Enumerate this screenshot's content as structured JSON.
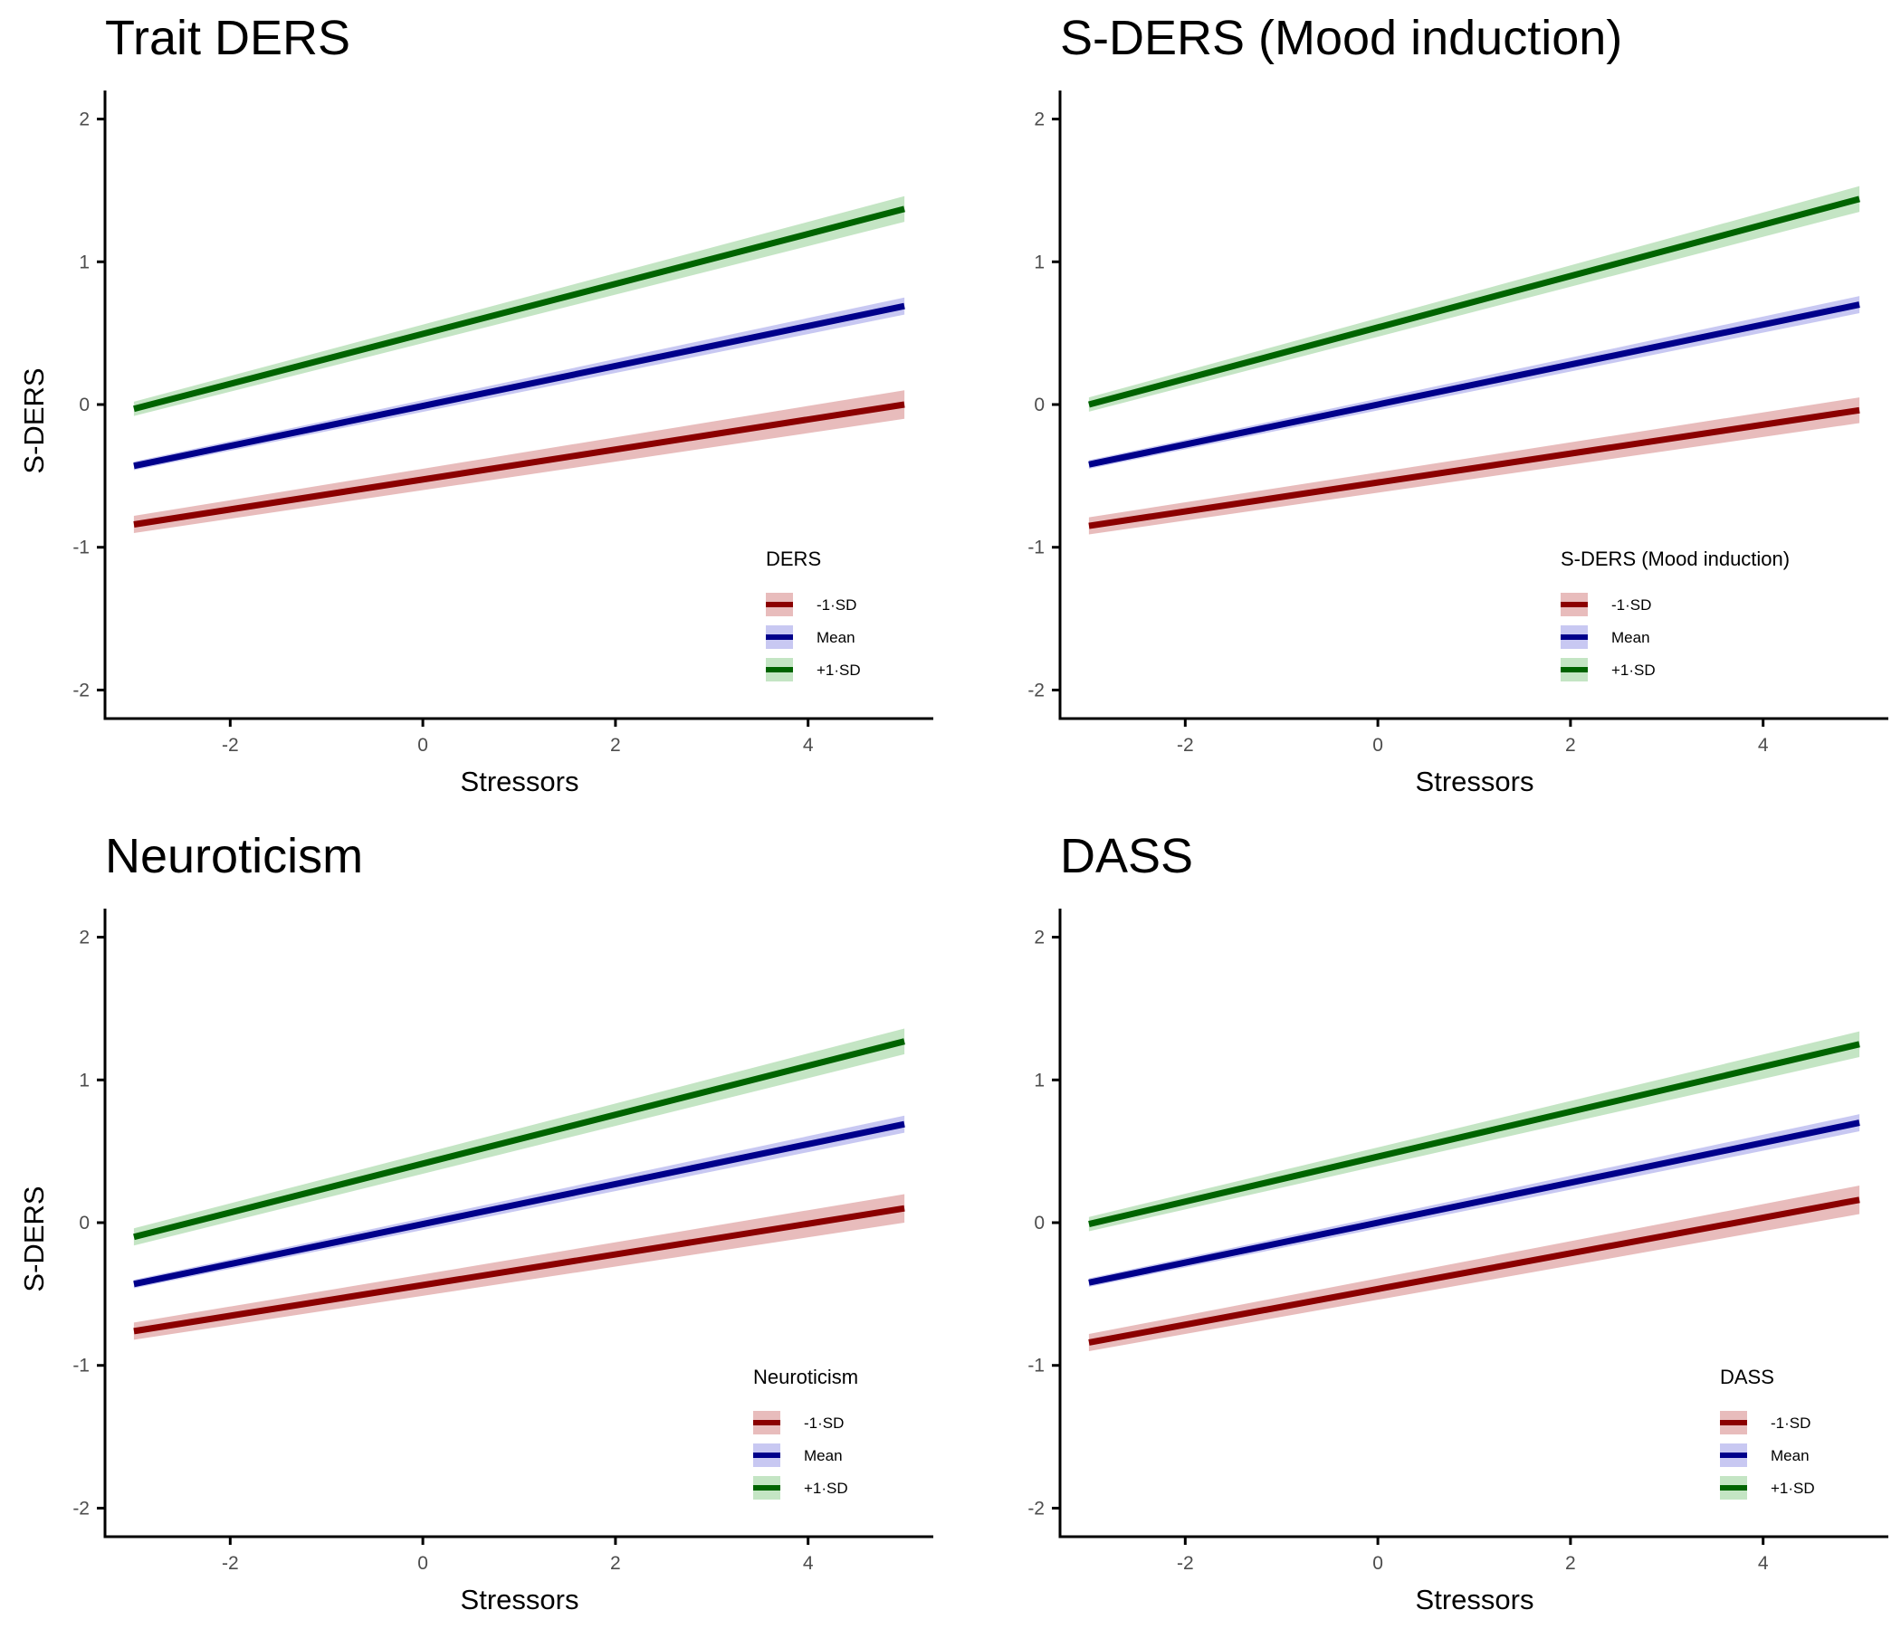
{
  "chart_data": [
    {
      "type": "line",
      "title": "Trait DERS",
      "xlabel": "Stressors",
      "ylabel": "S-DERS",
      "xlim": [
        -3.3,
        5.3
      ],
      "ylim": [
        -2.2,
        2.2
      ],
      "xticks": [
        -2,
        0,
        2,
        4
      ],
      "yticks": [
        -2,
        -1,
        0,
        1,
        2
      ],
      "x": [
        -3,
        5
      ],
      "legend": {
        "title": "DERS",
        "position": "bottom-right"
      },
      "series": [
        {
          "name": "-1·SD",
          "color": "#8b0000",
          "band_color": "#e0a5a5",
          "values": [
            -0.84,
            0.0
          ],
          "ci_halfwidth": [
            0.06,
            0.1
          ]
        },
        {
          "name": "Mean",
          "color": "#00008b",
          "band_color": "#b5b5ee",
          "values": [
            -0.43,
            0.69
          ],
          "ci_halfwidth": [
            0.03,
            0.06
          ]
        },
        {
          "name": "+1·SD",
          "color": "#006400",
          "band_color": "#b0dcb0",
          "values": [
            -0.03,
            1.37
          ],
          "ci_halfwidth": [
            0.05,
            0.09
          ]
        }
      ]
    },
    {
      "type": "line",
      "title": "S-DERS (Mood induction)",
      "xlabel": "Stressors",
      "ylabel": "",
      "xlim": [
        -3.3,
        5.3
      ],
      "ylim": [
        -2.2,
        2.2
      ],
      "xticks": [
        -2,
        0,
        2,
        4
      ],
      "yticks": [
        -2,
        -1,
        0,
        1,
        2
      ],
      "x": [
        -3,
        5
      ],
      "legend": {
        "title": "S-DERS (Mood induction)",
        "position": "bottom-right"
      },
      "series": [
        {
          "name": "-1·SD",
          "color": "#8b0000",
          "band_color": "#e0a5a5",
          "values": [
            -0.85,
            -0.04
          ],
          "ci_halfwidth": [
            0.06,
            0.09
          ]
        },
        {
          "name": "Mean",
          "color": "#00008b",
          "band_color": "#b5b5ee",
          "values": [
            -0.42,
            0.7
          ],
          "ci_halfwidth": [
            0.03,
            0.06
          ]
        },
        {
          "name": "+1·SD",
          "color": "#006400",
          "band_color": "#b0dcb0",
          "values": [
            0.0,
            1.44
          ],
          "ci_halfwidth": [
            0.05,
            0.09
          ]
        }
      ]
    },
    {
      "type": "line",
      "title": "Neuroticism",
      "xlabel": "Stressors",
      "ylabel": "S-DERS",
      "xlim": [
        -3.3,
        5.3
      ],
      "ylim": [
        -2.2,
        2.2
      ],
      "xticks": [
        -2,
        0,
        2,
        4
      ],
      "yticks": [
        -2,
        -1,
        0,
        1,
        2
      ],
      "x": [
        -3,
        5
      ],
      "legend": {
        "title": "Neuroticism",
        "position": "bottom-right"
      },
      "series": [
        {
          "name": "-1·SD",
          "color": "#8b0000",
          "band_color": "#e0a5a5",
          "values": [
            -0.76,
            0.1
          ],
          "ci_halfwidth": [
            0.06,
            0.1
          ]
        },
        {
          "name": "Mean",
          "color": "#00008b",
          "band_color": "#b5b5ee",
          "values": [
            -0.43,
            0.69
          ],
          "ci_halfwidth": [
            0.03,
            0.06
          ]
        },
        {
          "name": "+1·SD",
          "color": "#006400",
          "band_color": "#b0dcb0",
          "values": [
            -0.1,
            1.27
          ],
          "ci_halfwidth": [
            0.06,
            0.09
          ]
        }
      ]
    },
    {
      "type": "line",
      "title": "DASS",
      "xlabel": "Stressors",
      "ylabel": "",
      "xlim": [
        -3.3,
        5.3
      ],
      "ylim": [
        -2.2,
        2.2
      ],
      "xticks": [
        -2,
        0,
        2,
        4
      ],
      "yticks": [
        -2,
        -1,
        0,
        1,
        2
      ],
      "x": [
        -3,
        5
      ],
      "legend": {
        "title": "DASS",
        "position": "bottom-right"
      },
      "series": [
        {
          "name": "-1·SD",
          "color": "#8b0000",
          "band_color": "#e0a5a5",
          "values": [
            -0.84,
            0.16
          ],
          "ci_halfwidth": [
            0.06,
            0.1
          ]
        },
        {
          "name": "Mean",
          "color": "#00008b",
          "band_color": "#b5b5ee",
          "values": [
            -0.42,
            0.7
          ],
          "ci_halfwidth": [
            0.03,
            0.06
          ]
        },
        {
          "name": "+1·SD",
          "color": "#006400",
          "band_color": "#b0dcb0",
          "values": [
            -0.01,
            1.25
          ],
          "ci_halfwidth": [
            0.05,
            0.09
          ]
        }
      ]
    }
  ]
}
